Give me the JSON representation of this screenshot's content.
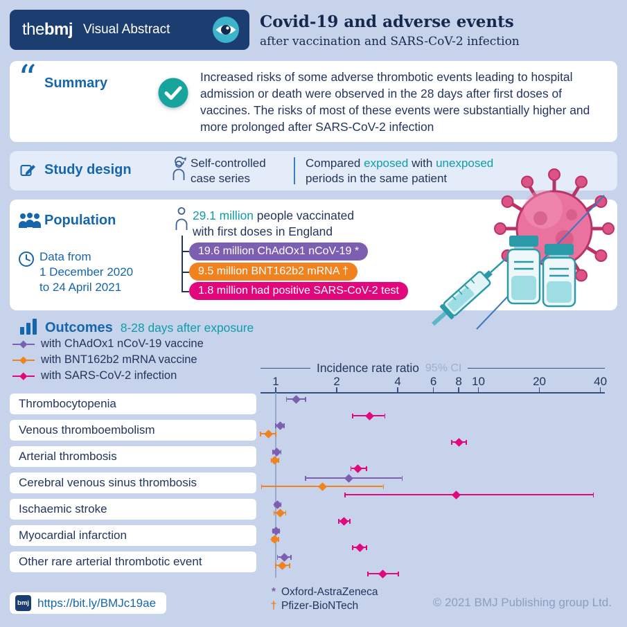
{
  "colors": {
    "background": "#c6d3ea",
    "navy": "#1c3d70",
    "heading_blue": "#1566ad",
    "teal_accent": "#0d9cab",
    "purple": "#7d5fb2",
    "orange": "#f08220",
    "magenta": "#e2077c",
    "dark_text": "#22355c",
    "muted_text": "#8b9fc2"
  },
  "icons": {
    "header": "eye-icon",
    "summary": "quote-icon",
    "summary_status": "check-circle-icon",
    "study_design": "pencil-icon",
    "study_method": "person-icon",
    "population": "people-icon",
    "date_range": "clock-icon",
    "vaccinated": "person-outline-icon",
    "outcomes": "bar-chart-icon",
    "link": "bmj-square-icon",
    "illustration": [
      "virus-icon",
      "syringe-icon",
      "vial-icon"
    ]
  },
  "header": {
    "logo_the": "the",
    "logo_bmj": "bmj",
    "brand": "Visual Abstract",
    "title": "Covid-19 and adverse events",
    "subtitle": "after vaccination and SARS-CoV-2 infection"
  },
  "summary": {
    "label": "Summary",
    "text": "Increased risks of some adverse thrombotic events leading to hospital admission or death were observed in the 28 days after first doses of vaccines. The risks of most of these events were substantially higher and more prolonged after SARS-CoV-2 infection"
  },
  "study_design": {
    "label": "Study design",
    "method_line1": "Self-controlled",
    "method_line2": "case series",
    "compared": "Compared ",
    "exposed": "exposed",
    "with_word": " with ",
    "unexposed": "unexposed",
    "comparison_line2": "periods in the same patient"
  },
  "population": {
    "label": "Population",
    "data_from": [
      "Data from",
      "1 December 2020",
      "to 24 April 2021"
    ],
    "vaccinated_highlight": "29.1 million",
    "vaccinated_rest": " people vaccinated",
    "vaccinated_line2": "with first doses in England",
    "pills": [
      {
        "text": "19.6 million ChAdOx1 nCoV-19 *",
        "color": "#7d5fb2"
      },
      {
        "text": "9.5 million BNT162b2 mRNA †",
        "color": "#f08220"
      },
      {
        "text": "1.8 million had positive SARS-CoV-2 test",
        "color": "#e2077c"
      }
    ]
  },
  "outcomes": {
    "label": "Outcomes",
    "sublabel": "8-28 days after exposure",
    "legend": [
      {
        "label": "with ChAdOx1 nCoV-19 vaccine",
        "color": "#7d5fb2"
      },
      {
        "label": "with BNT162b2 mRNA vaccine",
        "color": "#f08220"
      },
      {
        "label": "with SARS-CoV-2 infection",
        "color": "#e2077c"
      }
    ]
  },
  "chart_data": {
    "type": "forest",
    "axis_title": "Incidence rate ratio",
    "axis_note": "95% CI",
    "scale": "log",
    "ticks": [
      1,
      2,
      4,
      6,
      8,
      10,
      20,
      40
    ],
    "xlim": [
      0.8,
      42
    ],
    "grid": false,
    "legend_position": "top-left",
    "series_names": [
      "ChAdOx1 nCoV-19 vaccine",
      "BNT162b2 mRNA vaccine",
      "SARS-CoV-2 infection"
    ],
    "series_colors": [
      "#7d5fb2",
      "#f08220",
      "#e2077c"
    ],
    "rows": [
      {
        "outcome": "Thrombocytopenia",
        "points": [
          {
            "irr": 1.26,
            "lo": 1.13,
            "hi": 1.4
          },
          null,
          {
            "irr": 2.9,
            "lo": 2.4,
            "hi": 3.45
          }
        ]
      },
      {
        "outcome": "Venous thromboembolism",
        "points": [
          {
            "irr": 1.05,
            "lo": 1.0,
            "hi": 1.1
          },
          {
            "irr": 0.92,
            "lo": 0.84,
            "hi": 1.0
          },
          {
            "irr": 8.0,
            "lo": 7.4,
            "hi": 8.7
          }
        ]
      },
      {
        "outcome": "Arterial thrombosis",
        "points": [
          {
            "irr": 1.01,
            "lo": 0.97,
            "hi": 1.06
          },
          {
            "irr": 0.99,
            "lo": 0.95,
            "hi": 1.03
          },
          {
            "irr": 2.55,
            "lo": 2.35,
            "hi": 2.8
          }
        ]
      },
      {
        "outcome": "Cerebral venous sinus thrombosis",
        "points": [
          {
            "irr": 2.3,
            "lo": 1.4,
            "hi": 4.2
          },
          {
            "irr": 1.7,
            "lo": 0.85,
            "hi": 3.4
          },
          {
            "irr": 7.8,
            "lo": 2.2,
            "hi": 37.0
          }
        ]
      },
      {
        "outcome": "Ischaemic stroke",
        "points": [
          {
            "irr": 1.02,
            "lo": 0.99,
            "hi": 1.06
          },
          {
            "irr": 1.05,
            "lo": 0.98,
            "hi": 1.12
          },
          {
            "irr": 2.18,
            "lo": 2.05,
            "hi": 2.32
          }
        ]
      },
      {
        "outcome": "Myocardial infarction",
        "points": [
          {
            "irr": 1.0,
            "lo": 0.97,
            "hi": 1.04
          },
          {
            "irr": 0.99,
            "lo": 0.96,
            "hi": 1.03
          },
          {
            "irr": 2.6,
            "lo": 2.4,
            "hi": 2.8
          }
        ]
      },
      {
        "outcome": "Other rare arterial thrombotic event",
        "points": [
          {
            "irr": 1.1,
            "lo": 1.02,
            "hi": 1.19
          },
          {
            "irr": 1.08,
            "lo": 1.0,
            "hi": 1.17
          },
          {
            "irr": 3.38,
            "lo": 2.85,
            "hi": 4.02
          }
        ]
      }
    ]
  },
  "footer": {
    "link": "https://bit.ly/BMJc19ae",
    "link_icon_label": "bmj",
    "footnotes": [
      {
        "symbol": "*",
        "text": "Oxford-AstraZeneca",
        "color": "#7d5fb2"
      },
      {
        "symbol": "†",
        "text": "Pfizer-BioNTech",
        "color": "#f08220"
      }
    ],
    "copyright": "© 2021 BMJ Publishing group Ltd."
  }
}
